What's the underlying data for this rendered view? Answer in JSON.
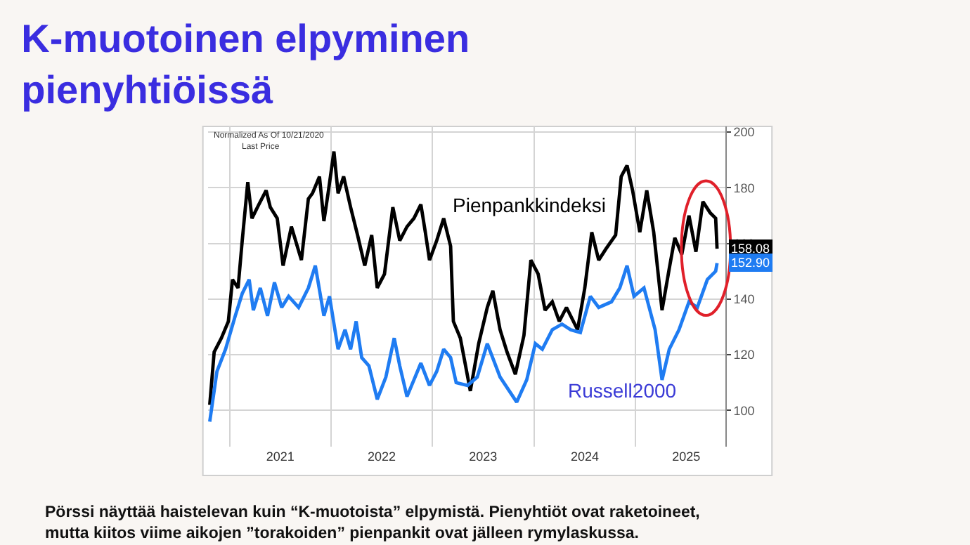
{
  "chart_data": {
    "type": "line",
    "title": "K-muotoinen elpyminen\npienyhtiöissä",
    "annotations": [
      "Normalized As Of 10/21/2020",
      "Last Price",
      "Pörssi näyttää haistelevan kuin “K-muotoista” elpymistä. Pienyhtiöt ovat raketoineet,\nmutta kiitos viime aikojen ”torakoiden” pienpankit ovat jälleen rymylaskussa."
    ],
    "series": [
      {
        "name": "Pienpankkindeksi",
        "color": "#000000",
        "x": [
          "2020-10-21",
          "2020-11-06",
          "2020-12-02",
          "2020-12-27",
          "2021-01-11",
          "2021-01-31",
          "2021-02-15",
          "2021-03-07",
          "2021-03-22",
          "2021-04-16",
          "2021-05-12",
          "2021-05-27",
          "2021-06-21",
          "2021-07-12",
          "2021-08-11",
          "2021-09-16",
          "2021-10-11",
          "2021-10-26",
          "2021-11-20",
          "2021-12-06",
          "2021-12-21",
          "2022-01-11",
          "2022-01-26",
          "2022-02-15",
          "2022-03-12",
          "2022-04-06",
          "2022-05-02",
          "2022-05-27",
          "2022-06-16",
          "2022-07-12",
          "2022-08-11",
          "2022-09-05",
          "2022-10-01",
          "2022-10-26",
          "2022-11-20",
          "2022-12-06",
          "2022-12-21",
          "2023-01-16",
          "2023-02-10",
          "2023-03-07",
          "2023-03-17",
          "2023-04-11",
          "2023-05-17",
          "2023-06-16",
          "2023-07-17",
          "2023-08-06",
          "2023-09-01",
          "2023-09-26",
          "2023-10-26",
          "2023-11-26",
          "2023-12-21",
          "2024-01-16",
          "2024-02-10",
          "2024-03-07",
          "2024-04-01",
          "2024-04-27",
          "2024-06-06",
          "2024-07-02",
          "2024-07-27",
          "2024-08-21",
          "2024-09-16",
          "2024-10-21",
          "2024-11-10",
          "2024-12-01",
          "2024-12-21",
          "2025-01-16",
          "2025-02-10",
          "2025-03-07",
          "2025-04-06",
          "2025-05-02",
          "2025-05-22",
          "2025-06-16",
          "2025-07-12",
          "2025-08-06",
          "2025-08-31",
          "2025-09-26",
          "2025-10-16",
          "2025-10-21"
        ],
        "values": [
          102,
          121,
          126,
          132,
          147,
          144,
          161,
          182,
          169,
          174,
          179,
          173,
          169,
          152,
          166,
          154,
          176,
          178,
          184,
          168,
          178,
          193,
          178,
          184,
          173,
          163,
          152,
          163,
          144,
          149,
          173,
          161,
          166,
          169,
          174,
          164,
          154,
          161,
          169,
          159,
          132,
          126,
          107,
          124,
          137,
          143,
          129,
          121,
          113,
          127,
          154,
          149,
          136,
          139,
          132,
          137,
          129,
          144,
          164,
          154,
          158,
          163,
          184,
          188,
          179,
          164,
          179,
          164,
          136,
          151,
          162,
          156,
          170,
          157,
          175,
          171,
          169,
          158.08
        ],
        "value_labels": [
          null,
          null,
          null,
          null,
          null,
          null,
          null,
          null,
          null,
          null,
          null,
          null,
          null,
          null,
          null,
          null,
          null,
          null,
          null,
          null,
          null,
          null,
          null,
          null,
          null,
          null,
          null,
          null,
          null,
          null,
          null,
          null,
          null,
          null,
          null,
          null,
          null,
          null,
          null,
          null,
          null,
          null,
          null,
          null,
          null,
          null,
          null,
          null,
          null,
          null,
          null,
          null,
          null,
          null,
          null,
          null,
          null,
          null,
          null,
          null,
          null,
          null,
          null,
          null,
          null,
          null,
          null,
          null,
          null,
          null,
          null,
          null,
          null,
          null,
          null,
          null,
          null,
          "158.08"
        ]
      },
      {
        "name": "Russell2000",
        "color": "#1f7cf2",
        "x": [
          "2020-10-21",
          "2020-11-16",
          "2020-12-17",
          "2021-01-21",
          "2021-02-15",
          "2021-03-12",
          "2021-03-27",
          "2021-04-21",
          "2021-05-17",
          "2021-06-11",
          "2021-07-07",
          "2021-08-01",
          "2021-09-06",
          "2021-10-11",
          "2021-11-05",
          "2021-12-06",
          "2021-12-26",
          "2022-01-26",
          "2022-02-20",
          "2022-03-12",
          "2022-04-01",
          "2022-04-21",
          "2022-05-17",
          "2022-06-16",
          "2022-07-17",
          "2022-08-16",
          "2022-09-05",
          "2022-10-01",
          "2022-10-26",
          "2022-11-20",
          "2022-12-21",
          "2023-01-16",
          "2023-02-10",
          "2023-03-07",
          "2023-03-27",
          "2023-05-07",
          "2023-06-11",
          "2023-07-17",
          "2023-09-01",
          "2023-10-31",
          "2023-12-06",
          "2024-01-06",
          "2024-01-31",
          "2024-03-07",
          "2024-04-11",
          "2024-05-12",
          "2024-06-16",
          "2024-07-22",
          "2024-08-21",
          "2024-10-06",
          "2024-11-05",
          "2024-12-01",
          "2024-12-26",
          "2025-01-31",
          "2025-03-12",
          "2025-04-06",
          "2025-05-02",
          "2025-06-06",
          "2025-07-12",
          "2025-08-11",
          "2025-09-16",
          "2025-10-16",
          "2025-10-21"
        ],
        "values": [
          96,
          114,
          122,
          134,
          142,
          147,
          136,
          144,
          134,
          146,
          137,
          141,
          137,
          144,
          152,
          134,
          141,
          122,
          129,
          122,
          132,
          119,
          116,
          104,
          112,
          126,
          116,
          105,
          111,
          117,
          109,
          114,
          122,
          119,
          110,
          109,
          112,
          124,
          112,
          103,
          111,
          124,
          122,
          129,
          131,
          129,
          128,
          141,
          137,
          139,
          144,
          152,
          141,
          144,
          129,
          111,
          122,
          129,
          139,
          137,
          147,
          150,
          152.9
        ],
        "value_labels": [
          null,
          null,
          null,
          null,
          null,
          null,
          null,
          null,
          null,
          null,
          null,
          null,
          null,
          null,
          null,
          null,
          null,
          null,
          null,
          null,
          null,
          null,
          null,
          null,
          null,
          null,
          null,
          null,
          null,
          null,
          null,
          null,
          null,
          null,
          null,
          null,
          null,
          null,
          null,
          null,
          null,
          null,
          null,
          null,
          null,
          null,
          null,
          null,
          null,
          null,
          null,
          null,
          null,
          null,
          null,
          null,
          null,
          null,
          null,
          null,
          null,
          null,
          "152.90"
        ]
      }
    ],
    "xlim": [
      "2020-10-15",
      "2025-11-20"
    ],
    "xticks": [
      {
        "value": "2021-01-01",
        "label": null
      },
      {
        "value": "2021-07-02",
        "label": "2021"
      },
      {
        "value": "2022-01-01",
        "label": null
      },
      {
        "value": "2022-07-02",
        "label": "2022"
      },
      {
        "value": "2023-01-01",
        "label": null
      },
      {
        "value": "2023-07-02",
        "label": "2023"
      },
      {
        "value": "2024-01-01",
        "label": null
      },
      {
        "value": "2024-07-02",
        "label": "2024"
      },
      {
        "value": "2025-01-01",
        "label": null
      },
      {
        "value": "2025-07-02",
        "label": "2025"
      }
    ],
    "ylim": [
      87,
      202
    ],
    "yticks": [
      100,
      120,
      140,
      160,
      180,
      200
    ],
    "grid": true,
    "legend": false,
    "line_style": "solid",
    "marker": "none"
  }
}
